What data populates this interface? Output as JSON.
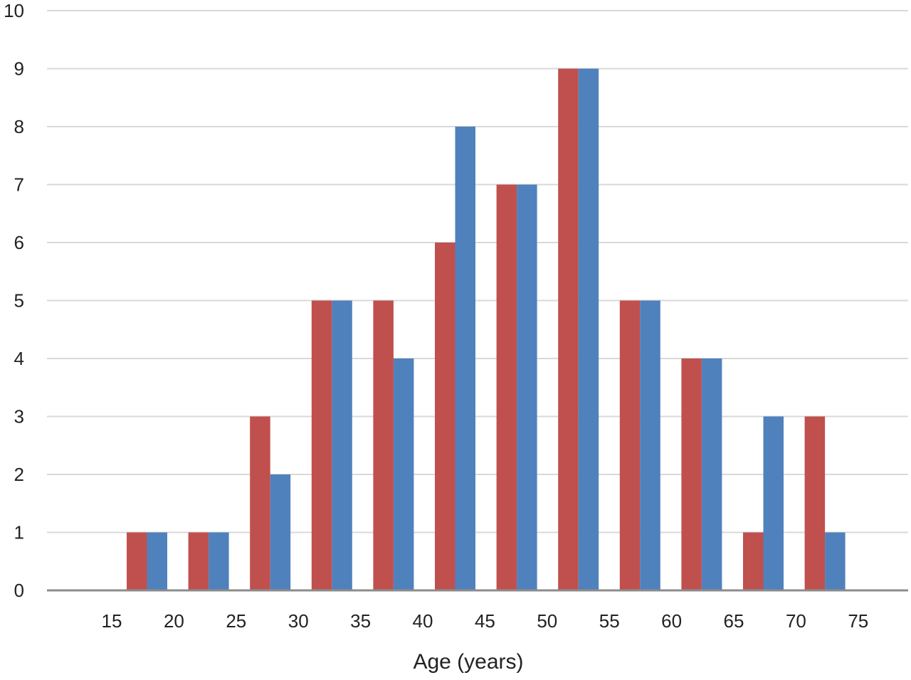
{
  "chart_data": {
    "type": "bar",
    "title": "",
    "xlabel": "Age (years)",
    "ylabel": "",
    "ylim": [
      0,
      10
    ],
    "yticks": [
      0,
      1,
      2,
      3,
      4,
      5,
      6,
      7,
      8,
      9,
      10
    ],
    "x_tick_labels": [
      "15",
      "20",
      "25",
      "30",
      "35",
      "40",
      "45",
      "50",
      "55",
      "60",
      "65",
      "70",
      "75"
    ],
    "categories": [
      "15-20",
      "20-25",
      "25-30",
      "30-35",
      "35-40",
      "40-45",
      "45-50",
      "50-55",
      "55-60",
      "60-65",
      "65-70",
      "70-75"
    ],
    "series": [
      {
        "values": [
          1,
          1,
          3,
          5,
          5,
          6,
          7,
          9,
          5,
          4,
          1,
          3
        ],
        "color": "#C0504D"
      },
      {
        "values": [
          1,
          1,
          2,
          5,
          4,
          8,
          7,
          9,
          5,
          4,
          3,
          1
        ],
        "color": "#4F81BD"
      }
    ],
    "grid": true,
    "legend": "none",
    "gridline_color": "#D9D9D9",
    "axis_color": "#8C8C8C"
  }
}
